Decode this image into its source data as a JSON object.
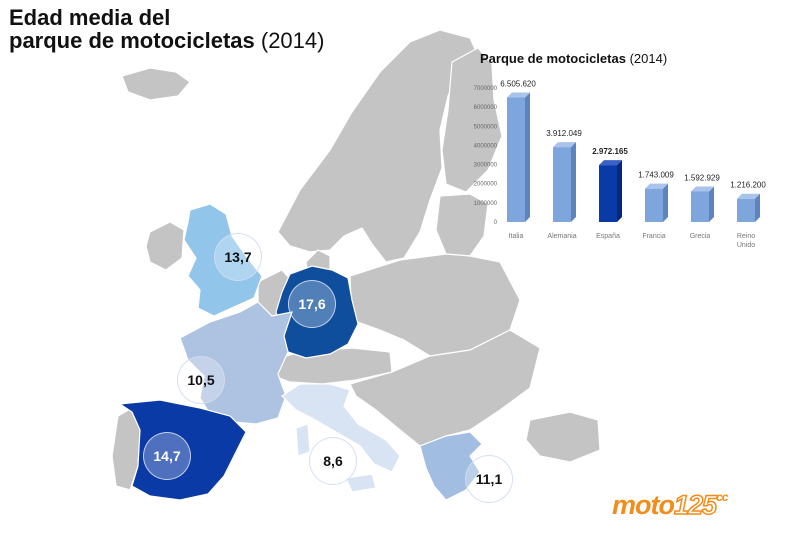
{
  "title": {
    "line1": "Edad media del",
    "line2": "parque de motocicletas",
    "year": "(2014)"
  },
  "map": {
    "base_color": "#c4c4c4",
    "border_color": "#ffffff",
    "countries": [
      {
        "name": "Reino Unido",
        "value": "13,7",
        "color": "#92c5ea"
      },
      {
        "name": "Alemania",
        "value": "17,6",
        "color": "#0f4e9c"
      },
      {
        "name": "Francia",
        "value": "10,5",
        "color": "#aec3e1"
      },
      {
        "name": "España",
        "value": "14,7",
        "color": "#0a3aa6"
      },
      {
        "name": "Italia",
        "value": "8,6",
        "color": "#d8e3f4"
      },
      {
        "name": "Grecia",
        "value": "11,1",
        "color": "#a2bde2"
      }
    ]
  },
  "chart_data": {
    "type": "bar",
    "title": "Parque de motocicletas",
    "title_year": "(2014)",
    "categories": [
      "Italia",
      "Alemania",
      "España",
      "Francia",
      "Grecia",
      "Reino Unido"
    ],
    "values": [
      6505620,
      3912049,
      2972165,
      1743009,
      1592929,
      1216200
    ],
    "value_labels": [
      "6.505.620",
      "3.912.049",
      "2.972.165",
      "1.743.009",
      "1.592.929",
      "1.216.200"
    ],
    "highlight_index": 2,
    "highlight_color": "#0a3aa6",
    "bar_color": "#7ea6dc",
    "ylim": [
      0,
      7000000
    ],
    "yticks": [
      "0",
      "1000000",
      "2000000",
      "3000000",
      "4000000",
      "5000000",
      "6000000",
      "7000000"
    ],
    "xlabel": "",
    "ylabel": "",
    "grid": false
  },
  "logo": {
    "part1": "moto",
    "part2": "125",
    "cc": "cc"
  }
}
